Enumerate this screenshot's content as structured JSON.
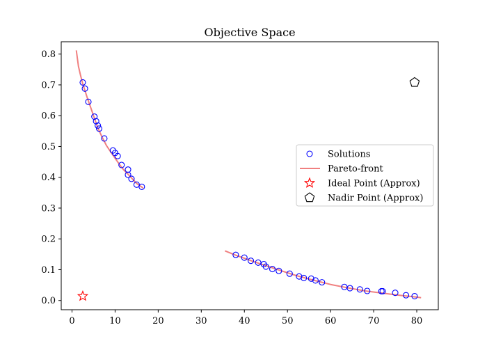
{
  "chart_data": {
    "type": "scatter",
    "title": "Objective Space",
    "xlabel": "",
    "ylabel": "",
    "xlim": [
      -2.5,
      85
    ],
    "ylim": [
      -0.03,
      0.84
    ],
    "xticks": [
      0,
      10,
      20,
      30,
      40,
      50,
      60,
      70,
      80
    ],
    "yticks": [
      0.0,
      0.1,
      0.2,
      0.3,
      0.4,
      0.5,
      0.6,
      0.7,
      0.8
    ],
    "xtick_labels": [
      "0",
      "10",
      "20",
      "30",
      "40",
      "50",
      "60",
      "70",
      "80"
    ],
    "ytick_labels": [
      "0.0",
      "0.1",
      "0.2",
      "0.3",
      "0.4",
      "0.5",
      "0.6",
      "0.7",
      "0.8"
    ],
    "grid": false,
    "legend_position": "center-right",
    "legend": [
      {
        "label": "Solutions",
        "marker": "circle",
        "color": "#0000ff"
      },
      {
        "label": "Pareto-front",
        "marker": "line",
        "color": "#f08080"
      },
      {
        "label": "Ideal Point (Approx)",
        "marker": "star",
        "color": "#ff0000"
      },
      {
        "label": "Nadir Point (Approx)",
        "marker": "pentagon",
        "color": "#000000"
      }
    ],
    "series": [
      {
        "name": "Pareto-front",
        "kind": "line",
        "color": "#f08080",
        "segments": [
          {
            "x": [
              1.0,
              1.5,
              2.0,
              2.5,
              3.0,
              3.5,
              4.0,
              5.0,
              6.0,
              7.0,
              8.0,
              9.0,
              10.0,
              11.0,
              12.0,
              13.0,
              14.0,
              15.0,
              16.0,
              16.5
            ],
            "y": [
              0.812,
              0.76,
              0.73,
              0.703,
              0.682,
              0.66,
              0.64,
              0.6,
              0.56,
              0.53,
              0.503,
              0.482,
              0.462,
              0.442,
              0.424,
              0.41,
              0.395,
              0.38,
              0.37,
              0.365
            ]
          },
          {
            "x": [
              35.5,
              38.0,
              40.0,
              42.0,
              45.0,
              48.0,
              52.0,
              56.0,
              60.0,
              64.0,
              68.0,
              72.0,
              76.0,
              80.0,
              81.0
            ],
            "y": [
              0.161,
              0.147,
              0.137,
              0.127,
              0.113,
              0.099,
              0.081,
              0.066,
              0.052,
              0.041,
              0.031,
              0.024,
              0.017,
              0.011,
              0.009
            ]
          }
        ]
      },
      {
        "name": "Solutions",
        "kind": "scatter",
        "color": "#0000ff",
        "points": [
          [
            2.5,
            0.708
          ],
          [
            3.0,
            0.688
          ],
          [
            3.8,
            0.645
          ],
          [
            5.2,
            0.597
          ],
          [
            5.6,
            0.582
          ],
          [
            6.0,
            0.568
          ],
          [
            6.3,
            0.558
          ],
          [
            7.5,
            0.526
          ],
          [
            9.5,
            0.487
          ],
          [
            10.0,
            0.479
          ],
          [
            10.6,
            0.469
          ],
          [
            11.5,
            0.44
          ],
          [
            13.0,
            0.425
          ],
          [
            13.0,
            0.408
          ],
          [
            13.8,
            0.395
          ],
          [
            15.0,
            0.376
          ],
          [
            16.2,
            0.369
          ],
          [
            38.0,
            0.148
          ],
          [
            40.0,
            0.139
          ],
          [
            41.5,
            0.129
          ],
          [
            43.2,
            0.123
          ],
          [
            44.5,
            0.118
          ],
          [
            45.0,
            0.11
          ],
          [
            46.5,
            0.102
          ],
          [
            48.0,
            0.096
          ],
          [
            50.5,
            0.087
          ],
          [
            52.7,
            0.078
          ],
          [
            53.8,
            0.073
          ],
          [
            55.5,
            0.071
          ],
          [
            56.5,
            0.065
          ],
          [
            58.0,
            0.059
          ],
          [
            63.2,
            0.044
          ],
          [
            64.5,
            0.04
          ],
          [
            66.8,
            0.036
          ],
          [
            68.5,
            0.031
          ],
          [
            71.8,
            0.03
          ],
          [
            72.1,
            0.03
          ],
          [
            75.0,
            0.025
          ],
          [
            77.5,
            0.017
          ],
          [
            79.5,
            0.014
          ]
        ]
      },
      {
        "name": "Ideal Point (Approx)",
        "kind": "point",
        "marker": "star",
        "color": "#ff0000",
        "points": [
          [
            2.5,
            0.014
          ]
        ]
      },
      {
        "name": "Nadir Point (Approx)",
        "kind": "point",
        "marker": "pentagon",
        "color": "#000000",
        "points": [
          [
            79.5,
            0.708
          ]
        ]
      }
    ]
  }
}
